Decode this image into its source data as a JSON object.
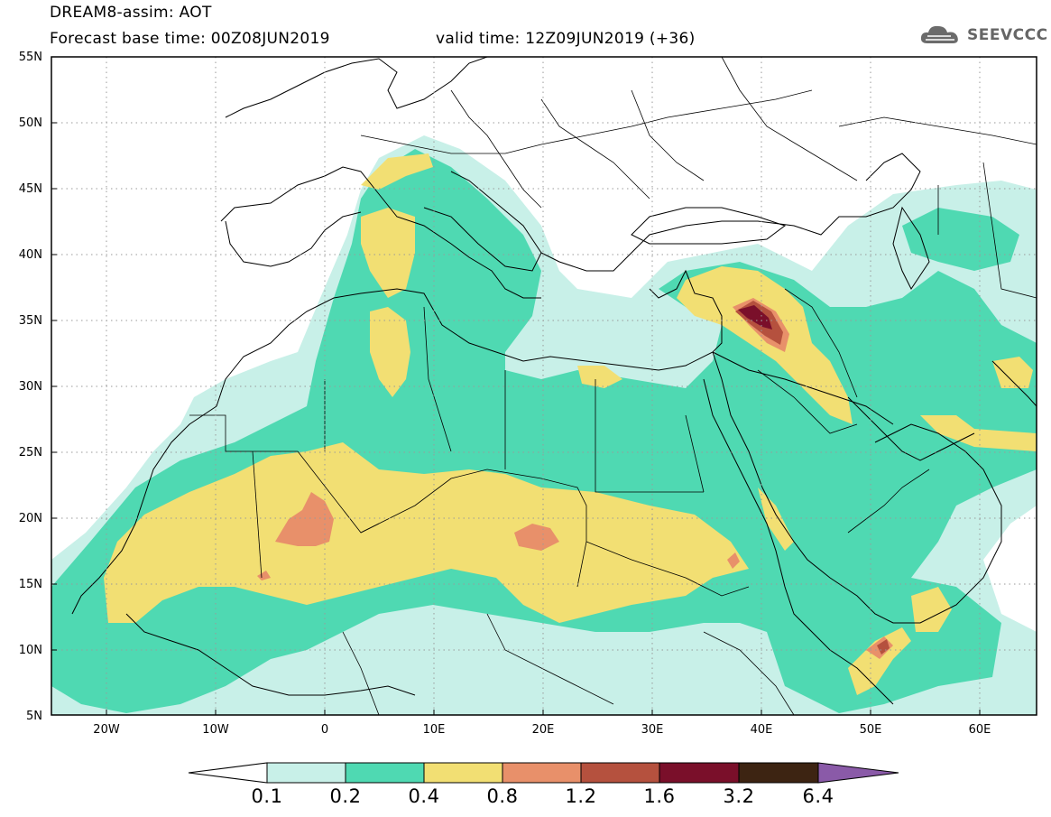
{
  "header": {
    "title": "DREAM8-assim: AOT",
    "base_time": "Forecast base time: 00Z08JUN2019",
    "valid_time": "valid time: 12Z09JUN2019 (+36)",
    "logo_text": "SEEVCCC"
  },
  "map": {
    "projection": "lat-lon",
    "lon_range": [
      -25,
      65
    ],
    "lat_range": [
      5,
      55
    ],
    "lat_labels": [
      "5N",
      "10N",
      "15N",
      "20N",
      "25N",
      "30N",
      "35N",
      "40N",
      "45N",
      "50N",
      "55N"
    ],
    "lon_labels": [
      "20W",
      "10W",
      "0",
      "10E",
      "20E",
      "30E",
      "40E",
      "50E",
      "60E"
    ],
    "grid": "dotted",
    "variable": "Aerosol optical thickness"
  },
  "colorbar": {
    "levels": [
      "0.1",
      "0.2",
      "0.4",
      "0.8",
      "1.2",
      "1.6",
      "3.2",
      "6.4"
    ],
    "colors": [
      "#ffffff",
      "#c8f0e8",
      "#4fd9b2",
      "#f2df73",
      "#e8906a",
      "#b5513e",
      "#7a0f2a",
      "#3d2412",
      "#8a5aa8"
    ]
  }
}
